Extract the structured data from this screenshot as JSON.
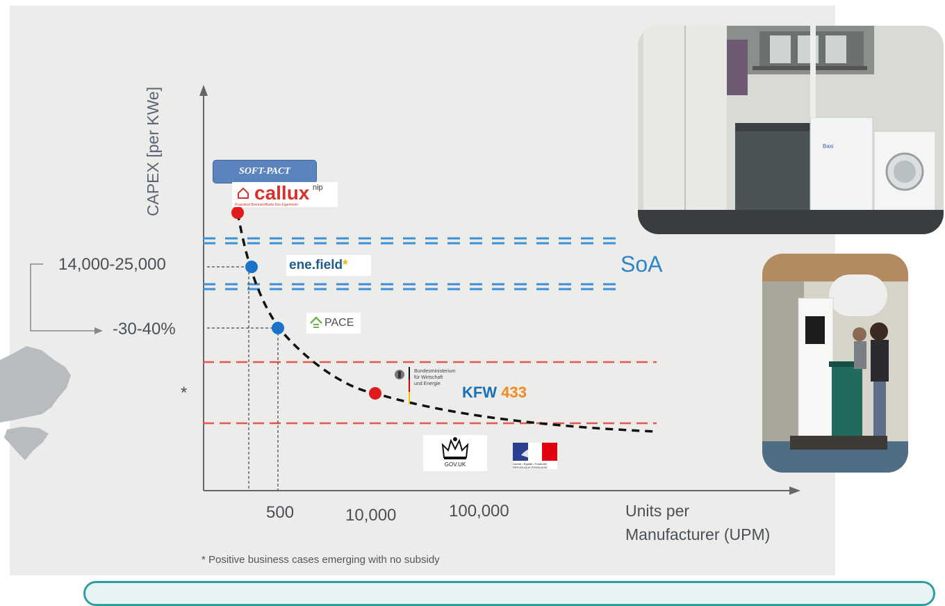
{
  "chart_data": {
    "type": "scatter",
    "ylabel": "CAPEX [per KWe]",
    "xlabel_lines": [
      "Units per",
      "Manufacturer (UPM)"
    ],
    "x_ticks": [
      "500",
      "10,000",
      "100,000"
    ],
    "y_labels": [
      "14,000-25,000",
      "-30-40%",
      "*"
    ],
    "annotation": "SoA",
    "footnote": "* Positive business cases emerging with no subsidy",
    "points": [
      {
        "label": "SOFT-PACT / callux",
        "color": "red"
      },
      {
        "label": "ene.field",
        "color": "blue"
      },
      {
        "label": "PACE",
        "color": "blue"
      },
      {
        "label": "KFW 433",
        "color": "red"
      }
    ],
    "trend": "dashed decreasing curve",
    "bands": [
      {
        "style": "dashed",
        "color": "#3b8fd4",
        "label": "SoA"
      },
      {
        "style": "dashed",
        "color": "#e05555"
      }
    ]
  },
  "logos": {
    "softpact": "SOFT-PACT",
    "callux": "callux",
    "callux_sup": "nip",
    "callux_sub": "Praxistest Brennstoffzelle fürs Eigenheim",
    "enefield_main": "ene.field",
    "enefield_star": "*",
    "pace": "PACE",
    "bmwi_lines": [
      "Bundesministerium",
      "für Wirtschaft",
      "und Energie"
    ],
    "kfw_word": "KFW",
    "kfw_num": "433",
    "govuk": "GOV.UK",
    "france_lines": [
      "Liberté • Égalité • Fraternité",
      "RÉPUBLIQUE FRANÇAISE"
    ]
  },
  "photo1": {
    "appliance_brand": "Baxi"
  },
  "colors": {
    "red_point": "#e01b1b",
    "blue_point": "#1a73c9",
    "soa_band": "#3b8fd4",
    "red_band": "#e05555",
    "axis": "#666666"
  }
}
